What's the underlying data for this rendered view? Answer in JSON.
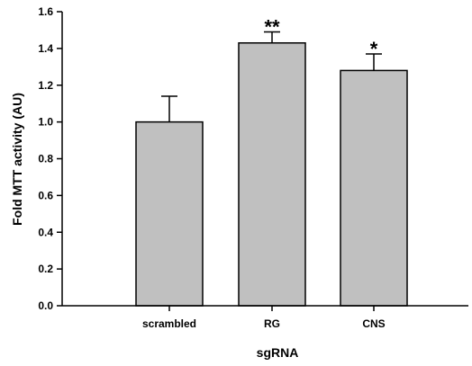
{
  "chart_data": {
    "type": "bar",
    "title": "",
    "xlabel": "sgRNA",
    "ylabel": "Fold MTT activity (AU)",
    "categories": [
      "scrambled",
      "RG",
      "CNS"
    ],
    "values": [
      1.0,
      1.43,
      1.28
    ],
    "error_upper": [
      0.14,
      0.06,
      0.09
    ],
    "significance": [
      "",
      "**",
      "*"
    ],
    "ylim": [
      0,
      1.6
    ],
    "yticks": [
      0.0,
      0.2,
      0.4,
      0.6,
      0.8,
      1.0,
      1.2,
      1.4,
      1.6
    ],
    "ytick_labels": [
      "0.0",
      "0.2",
      "0.4",
      "0.6",
      "0.8",
      "1.0",
      "1.2",
      "1.4",
      "1.6"
    ],
    "bar_color": "#c0c0c0",
    "grid": false,
    "legend": false
  }
}
